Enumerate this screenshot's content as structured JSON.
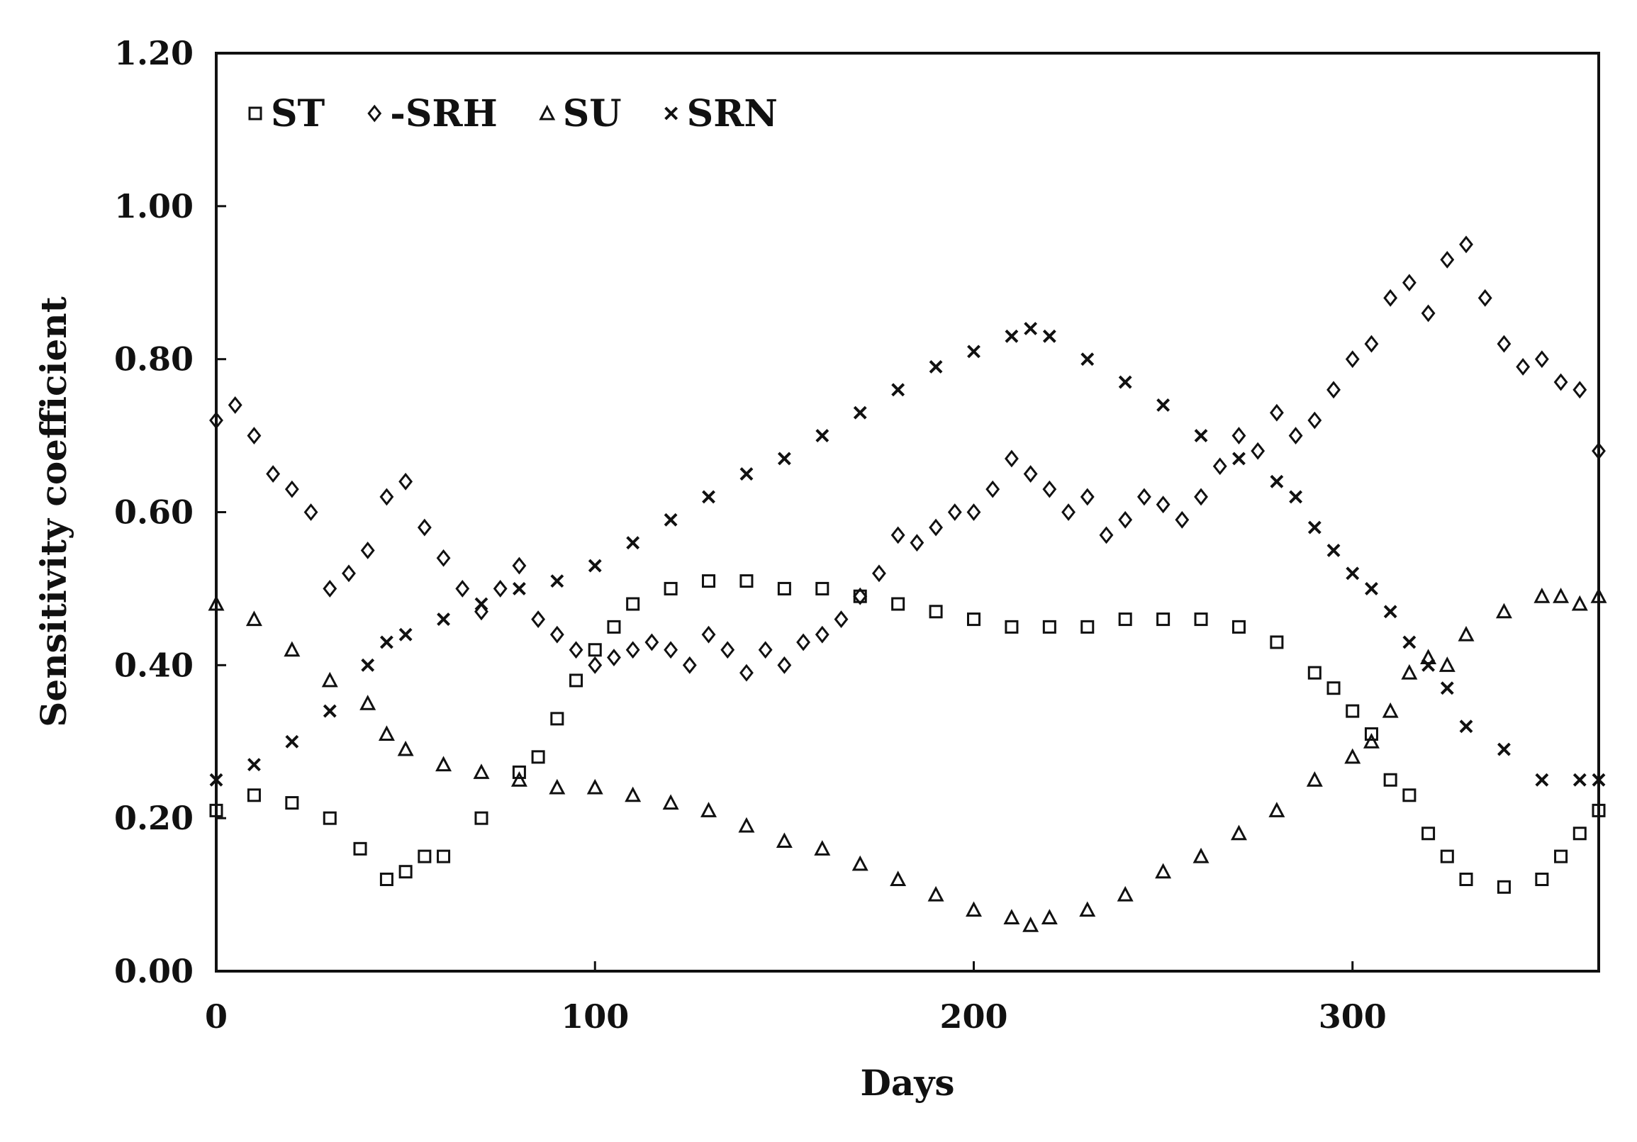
{
  "chart_data": {
    "type": "scatter",
    "title": "",
    "xlabel": "Days",
    "ylabel": "Sensitivity coefficient",
    "xlim": [
      0,
      365
    ],
    "ylim": [
      0,
      1.2
    ],
    "xticks": [
      0,
      100,
      200,
      300
    ],
    "xtick_labels": [
      "0",
      "100",
      "200",
      "300"
    ],
    "yticks": [
      0,
      0.2,
      0.4,
      0.6,
      0.8,
      1.0,
      1.2
    ],
    "ytick_labels": [
      "0.00",
      "0.20",
      "0.40",
      "0.60",
      "0.80",
      "1.00",
      "1.20"
    ],
    "grid": false,
    "legend_position": "top-left",
    "series": [
      {
        "name": "ST",
        "marker": "square",
        "color": "#111111",
        "x": [
          0,
          10,
          20,
          30,
          38,
          45,
          50,
          55,
          60,
          70,
          80,
          85,
          90,
          95,
          100,
          105,
          110,
          120,
          130,
          140,
          150,
          160,
          170,
          180,
          190,
          200,
          210,
          220,
          230,
          240,
          250,
          260,
          270,
          280,
          290,
          295,
          300,
          305,
          310,
          315,
          320,
          325,
          330,
          340,
          350,
          355,
          360,
          365
        ],
        "y": [
          0.21,
          0.23,
          0.22,
          0.2,
          0.16,
          0.12,
          0.13,
          0.15,
          0.15,
          0.2,
          0.26,
          0.28,
          0.33,
          0.38,
          0.42,
          0.45,
          0.48,
          0.5,
          0.51,
          0.51,
          0.5,
          0.5,
          0.49,
          0.48,
          0.47,
          0.46,
          0.45,
          0.45,
          0.45,
          0.46,
          0.46,
          0.46,
          0.45,
          0.43,
          0.39,
          0.37,
          0.34,
          0.31,
          0.25,
          0.23,
          0.18,
          0.15,
          0.12,
          0.11,
          0.12,
          0.15,
          0.18,
          0.21
        ]
      },
      {
        "name": "-SRH",
        "marker": "diamond",
        "color": "#111111",
        "x": [
          0,
          5,
          10,
          15,
          20,
          25,
          30,
          35,
          40,
          45,
          50,
          55,
          60,
          65,
          70,
          75,
          80,
          85,
          90,
          95,
          100,
          105,
          110,
          115,
          120,
          125,
          130,
          135,
          140,
          145,
          150,
          155,
          160,
          165,
          170,
          175,
          180,
          185,
          190,
          195,
          200,
          205,
          210,
          215,
          220,
          225,
          230,
          235,
          240,
          245,
          250,
          255,
          260,
          265,
          270,
          275,
          280,
          285,
          290,
          295,
          300,
          305,
          310,
          315,
          320,
          325,
          330,
          335,
          340,
          345,
          350,
          355,
          360,
          365
        ],
        "y": [
          0.72,
          0.74,
          0.7,
          0.65,
          0.63,
          0.6,
          0.5,
          0.52,
          0.55,
          0.62,
          0.64,
          0.58,
          0.54,
          0.5,
          0.47,
          0.5,
          0.53,
          0.46,
          0.44,
          0.42,
          0.4,
          0.41,
          0.42,
          0.43,
          0.42,
          0.4,
          0.44,
          0.42,
          0.39,
          0.42,
          0.4,
          0.43,
          0.44,
          0.46,
          0.49,
          0.52,
          0.57,
          0.56,
          0.58,
          0.6,
          0.6,
          0.63,
          0.67,
          0.65,
          0.63,
          0.6,
          0.62,
          0.57,
          0.59,
          0.62,
          0.61,
          0.59,
          0.62,
          0.66,
          0.7,
          0.68,
          0.73,
          0.7,
          0.72,
          0.76,
          0.8,
          0.82,
          0.88,
          0.9,
          0.86,
          0.93,
          0.95,
          0.88,
          0.82,
          0.79,
          0.8,
          0.77,
          0.76,
          0.68
        ]
      },
      {
        "name": "SU",
        "marker": "triangle",
        "color": "#111111",
        "x": [
          0,
          10,
          20,
          30,
          40,
          45,
          50,
          60,
          70,
          80,
          90,
          100,
          110,
          120,
          130,
          140,
          150,
          160,
          170,
          180,
          190,
          200,
          210,
          215,
          220,
          230,
          240,
          250,
          260,
          270,
          280,
          290,
          300,
          305,
          310,
          315,
          320,
          325,
          330,
          340,
          350,
          355,
          360,
          365
        ],
        "y": [
          0.48,
          0.46,
          0.42,
          0.38,
          0.35,
          0.31,
          0.29,
          0.27,
          0.26,
          0.25,
          0.24,
          0.24,
          0.23,
          0.22,
          0.21,
          0.19,
          0.17,
          0.16,
          0.14,
          0.12,
          0.1,
          0.08,
          0.07,
          0.06,
          0.07,
          0.08,
          0.1,
          0.13,
          0.15,
          0.18,
          0.21,
          0.25,
          0.28,
          0.3,
          0.34,
          0.39,
          0.41,
          0.4,
          0.44,
          0.47,
          0.49,
          0.49,
          0.48,
          0.49
        ]
      },
      {
        "name": "SRN",
        "marker": "x",
        "color": "#111111",
        "x": [
          0,
          10,
          20,
          30,
          40,
          45,
          50,
          60,
          70,
          80,
          90,
          100,
          110,
          120,
          130,
          140,
          150,
          160,
          170,
          180,
          190,
          200,
          210,
          215,
          220,
          230,
          240,
          250,
          260,
          270,
          280,
          285,
          290,
          295,
          300,
          305,
          310,
          315,
          320,
          325,
          330,
          340,
          350,
          360,
          365
        ],
        "y": [
          0.25,
          0.27,
          0.3,
          0.34,
          0.4,
          0.43,
          0.44,
          0.46,
          0.48,
          0.5,
          0.51,
          0.53,
          0.56,
          0.59,
          0.62,
          0.65,
          0.67,
          0.7,
          0.73,
          0.76,
          0.79,
          0.81,
          0.83,
          0.84,
          0.83,
          0.8,
          0.77,
          0.74,
          0.7,
          0.67,
          0.64,
          0.62,
          0.58,
          0.55,
          0.52,
          0.5,
          0.47,
          0.43,
          0.4,
          0.37,
          0.32,
          0.29,
          0.25,
          0.25,
          0.25
        ]
      }
    ]
  }
}
